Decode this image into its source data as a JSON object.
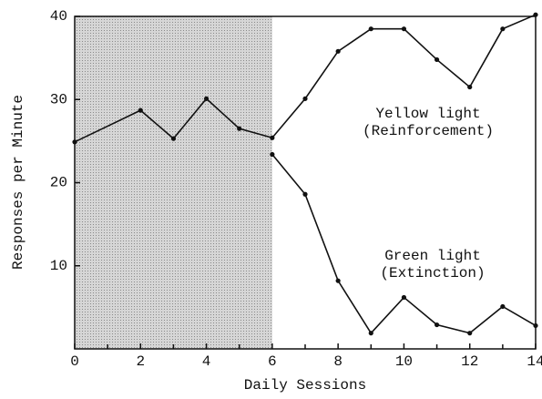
{
  "chart_data": {
    "type": "line",
    "xlabel": "Daily Sessions",
    "ylabel": "Responses per Minute",
    "xlim": [
      0,
      14
    ],
    "ylim": [
      0,
      40
    ],
    "xticks": [
      0,
      2,
      4,
      6,
      8,
      10,
      12,
      14
    ],
    "xminor": [
      1,
      3,
      5,
      7,
      9,
      11,
      13
    ],
    "yticks": [
      10,
      20,
      30,
      40
    ],
    "shade": [
      0,
      6
    ],
    "color": "#111111",
    "series": [
      {
        "labels": [
          "Yellow light",
          "(Reinforcement)"
        ],
        "x": [
          0,
          2,
          3,
          4,
          5,
          6,
          7,
          8,
          9,
          10,
          11,
          12,
          13,
          14
        ],
        "values": [
          24.9,
          28.7,
          25.3,
          30.1,
          26.5,
          25.4,
          30.1,
          35.8,
          38.5,
          38.5,
          34.8,
          31.5,
          38.5,
          40.2
        ]
      },
      {
        "labels": [
          "Green light",
          "(Extinction)"
        ],
        "x": [
          6,
          7,
          8,
          9,
          10,
          11,
          12,
          13,
          14
        ],
        "values": [
          23.4,
          18.6,
          8.2,
          1.9,
          6.2,
          2.9,
          1.9,
          5.1,
          2.8
        ]
      }
    ]
  }
}
